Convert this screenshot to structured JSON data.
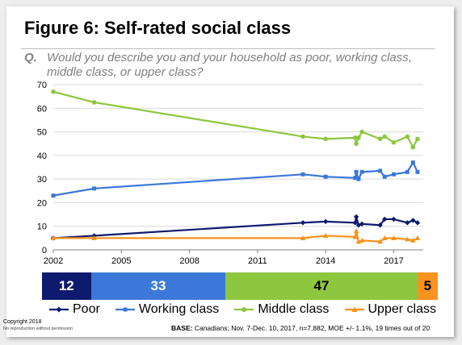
{
  "slide": {
    "title": "Figure 6: Self-rated social class",
    "question_label": "Q.",
    "question_text": "Would you describe you and your household as poor, working class, middle class, or upper class?",
    "copyright_line1": "Copyright 2018",
    "copyright_line2": "No reproduction without permission",
    "base_label": "BASE:",
    "base_text": "Canadians; Nov. 7-Dec. 10, 2017, n=7,882, MOE +/- 1.1%, 19 times out of 20"
  },
  "chart_data": {
    "type": "line",
    "title": "",
    "xlabel": "",
    "ylabel": "",
    "xlim": [
      2002,
      2018.3
    ],
    "ylim": [
      0,
      70
    ],
    "xticks": [
      "2002",
      "2005",
      "2008",
      "2011",
      "2014",
      "2017"
    ],
    "yticks": [
      "0",
      "10",
      "20",
      "30",
      "40",
      "50",
      "60",
      "70"
    ],
    "grid": "horizontal",
    "series": [
      {
        "name": "Poor",
        "color": "#0d1a6e",
        "marker": "diamond",
        "x": [
          2002,
          2003.8,
          2013,
          2014,
          2015.3,
          2015.35,
          2015.45,
          2015.6,
          2016.4,
          2016.6,
          2017,
          2017.6,
          2017.85,
          2018.05
        ],
        "y": [
          5,
          6,
          11.5,
          12,
          11.5,
          14,
          10.5,
          11,
          10.5,
          13,
          13,
          11.5,
          12.5,
          11.5
        ]
      },
      {
        "name": "Working class",
        "color": "#3c78d8",
        "marker": "square",
        "x": [
          2002,
          2003.8,
          2013,
          2014,
          2015.3,
          2015.35,
          2015.45,
          2015.6,
          2016.4,
          2016.6,
          2017,
          2017.6,
          2017.85,
          2018.05
        ],
        "y": [
          23,
          26,
          32,
          31,
          30.5,
          33,
          30,
          33,
          33.5,
          31,
          32,
          33,
          37,
          33
        ]
      },
      {
        "name": "Middle class",
        "color": "#8dc63f",
        "marker": "circle",
        "x": [
          2002,
          2003.8,
          2013,
          2014,
          2015.3,
          2015.35,
          2015.45,
          2015.6,
          2016.4,
          2016.6,
          2017,
          2017.6,
          2017.85,
          2018.05
        ],
        "y": [
          67,
          62.5,
          48,
          47,
          47.5,
          45,
          47.5,
          50,
          47,
          48,
          45.5,
          48,
          43.5,
          47
        ]
      },
      {
        "name": "Upper class",
        "color": "#f7931e",
        "marker": "triangle",
        "x": [
          2002,
          2003.8,
          2013,
          2014,
          2015.3,
          2015.35,
          2015.45,
          2015.6,
          2016.4,
          2016.6,
          2017,
          2017.6,
          2017.85,
          2018.05
        ],
        "y": [
          5,
          5,
          5,
          6,
          5.5,
          8,
          3.5,
          4,
          3.5,
          5,
          5,
          4.5,
          4,
          5
        ]
      }
    ],
    "summary_bar": {
      "segments": [
        {
          "label": "12",
          "value": 12,
          "color": "#0d1a6e",
          "text_color": "#ffffff"
        },
        {
          "label": "33",
          "value": 33,
          "color": "#3c78d8",
          "text_color": "#ffffff"
        },
        {
          "label": "47",
          "value": 47,
          "color": "#8dc63f",
          "text_color": "#000000"
        },
        {
          "label": "5",
          "value": 5,
          "color": "#f7931e",
          "text_color": "#000000"
        }
      ]
    },
    "legend": [
      "Poor",
      "Working class",
      "Middle class",
      "Upper class"
    ]
  }
}
